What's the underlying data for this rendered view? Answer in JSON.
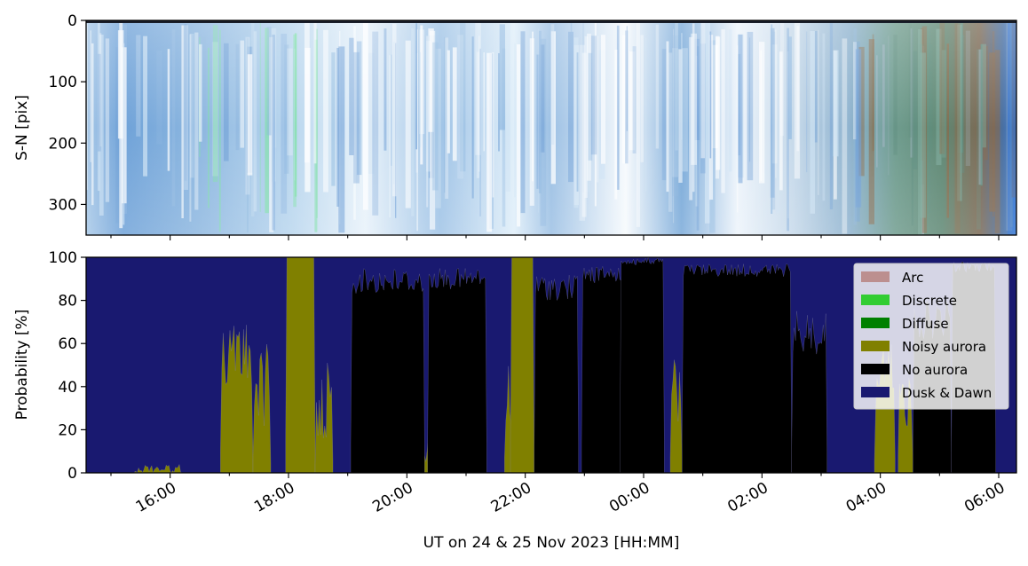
{
  "chart_data": [
    {
      "type": "heatmap",
      "description_kind": "keogram",
      "ylabel": "S-N [pix]",
      "ylim": [
        350,
        0
      ],
      "yticks": [
        0,
        100,
        200,
        300
      ],
      "x_shared_with_panel_2": true,
      "colors": {
        "blue_haze": "#8fb8e0",
        "white_bands": "#ffffff",
        "green_aurora": "#7fe0a8",
        "dawn_green": "#5f8e80",
        "dawn_brown": "#8a6a4a",
        "dawn_blue": "#2f6fd0"
      }
    },
    {
      "type": "area",
      "xlabel": "UT on 24 & 25 Nov 2023 [HH:MM]",
      "ylabel": "Probability [%]",
      "ylim": [
        0,
        100
      ],
      "yticks": [
        0,
        20,
        40,
        60,
        80,
        100
      ],
      "xlim_hours": [
        14.58,
        30.3
      ],
      "xticks": [
        {
          "hour": 16,
          "label": "16:00"
        },
        {
          "hour": 18,
          "label": "18:00"
        },
        {
          "hour": 20,
          "label": "20:00"
        },
        {
          "hour": 22,
          "label": "22:00"
        },
        {
          "hour": 24,
          "label": "00:00"
        },
        {
          "hour": 26,
          "label": "02:00"
        },
        {
          "hour": 28,
          "label": "04:00"
        },
        {
          "hour": 30,
          "label": "06:00"
        }
      ],
      "legend_position": "top-right",
      "legend": [
        {
          "name": "Arc",
          "color": "#bc8f8f"
        },
        {
          "name": "Discrete",
          "color": "#32cd32"
        },
        {
          "name": "Diffuse",
          "color": "#008000"
        },
        {
          "name": "Noisy aurora",
          "color": "#808000"
        },
        {
          "name": "No aurora",
          "color": "#000000"
        },
        {
          "name": "Dusk & Dawn",
          "color": "#191970"
        }
      ],
      "series": [
        {
          "name": "Noisy aurora",
          "color": "#808000",
          "segments": [
            {
              "start": 15.4,
              "end": 16.2,
              "level": 4,
              "noise": 4
            },
            {
              "start": 16.85,
              "end": 17.4,
              "level": 70,
              "noise": 30
            },
            {
              "start": 17.4,
              "end": 17.7,
              "level": 60,
              "noise": 40
            },
            {
              "start": 17.95,
              "end": 18.45,
              "level": 100,
              "noise": 0
            },
            {
              "start": 18.45,
              "end": 18.75,
              "level": 55,
              "noise": 40
            },
            {
              "start": 19.9,
              "end": 20.5,
              "level": 25,
              "noise": 25
            },
            {
              "start": 21.65,
              "end": 21.85,
              "level": 50,
              "noise": 30
            },
            {
              "start": 21.75,
              "end": 22.15,
              "level": 100,
              "noise": 0
            },
            {
              "start": 24.45,
              "end": 24.65,
              "level": 55,
              "noise": 35
            },
            {
              "start": 27.9,
              "end": 28.25,
              "level": 60,
              "noise": 35
            },
            {
              "start": 28.3,
              "end": 28.55,
              "level": 50,
              "noise": 30
            }
          ]
        },
        {
          "name": "No aurora",
          "color": "#000000",
          "segments": [
            {
              "start": 19.05,
              "end": 20.3,
              "level": 95,
              "noise": 12
            },
            {
              "start": 20.35,
              "end": 21.35,
              "level": 95,
              "noise": 10
            },
            {
              "start": 22.15,
              "end": 22.9,
              "level": 92,
              "noise": 12
            },
            {
              "start": 22.95,
              "end": 23.8,
              "level": 96,
              "noise": 8
            },
            {
              "start": 23.6,
              "end": 24.35,
              "level": 100,
              "noise": 4
            },
            {
              "start": 24.65,
              "end": 26.5,
              "level": 97,
              "noise": 6
            },
            {
              "start": 26.5,
              "end": 27.1,
              "level": 75,
              "noise": 20
            },
            {
              "start": 28.55,
              "end": 29.2,
              "level": 80,
              "noise": 18
            },
            {
              "start": 29.2,
              "end": 29.95,
              "level": 98,
              "noise": 5
            }
          ]
        }
      ]
    }
  ]
}
